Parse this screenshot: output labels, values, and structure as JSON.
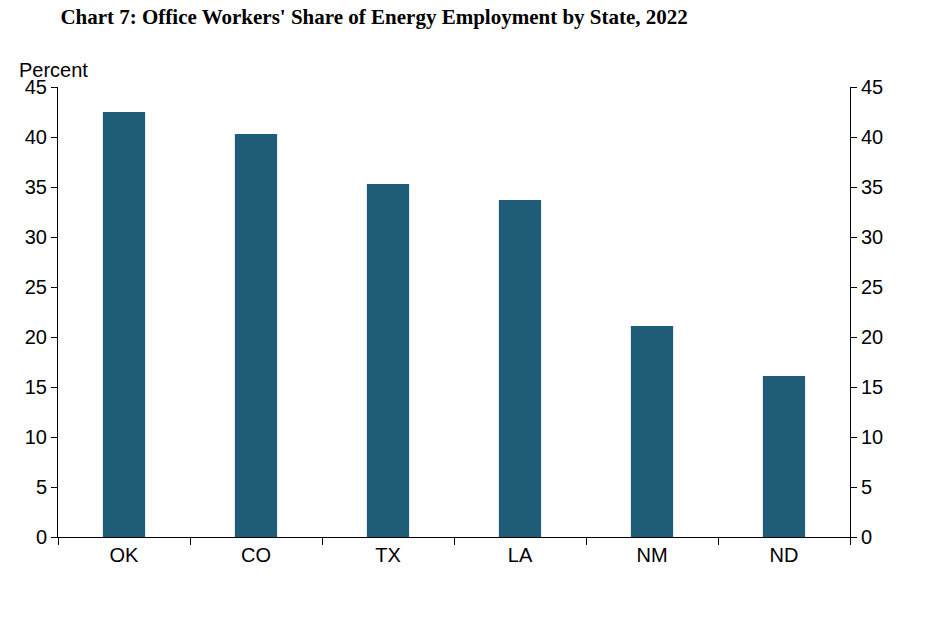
{
  "chart_data": {
    "type": "bar",
    "title": "Chart 7: Office Workers' Share of Energy Employment by State, 2022",
    "ylabel": "Percent",
    "categories": [
      "OK",
      "CO",
      "TX",
      "LA",
      "NM",
      "ND"
    ],
    "values": [
      42.5,
      40.3,
      35.3,
      33.7,
      21.1,
      16.1
    ],
    "color": "#1f5c78",
    "ylim": [
      0,
      45
    ],
    "yticks": [
      0,
      5,
      10,
      15,
      20,
      25,
      30,
      35,
      40,
      45
    ],
    "grid": false
  }
}
